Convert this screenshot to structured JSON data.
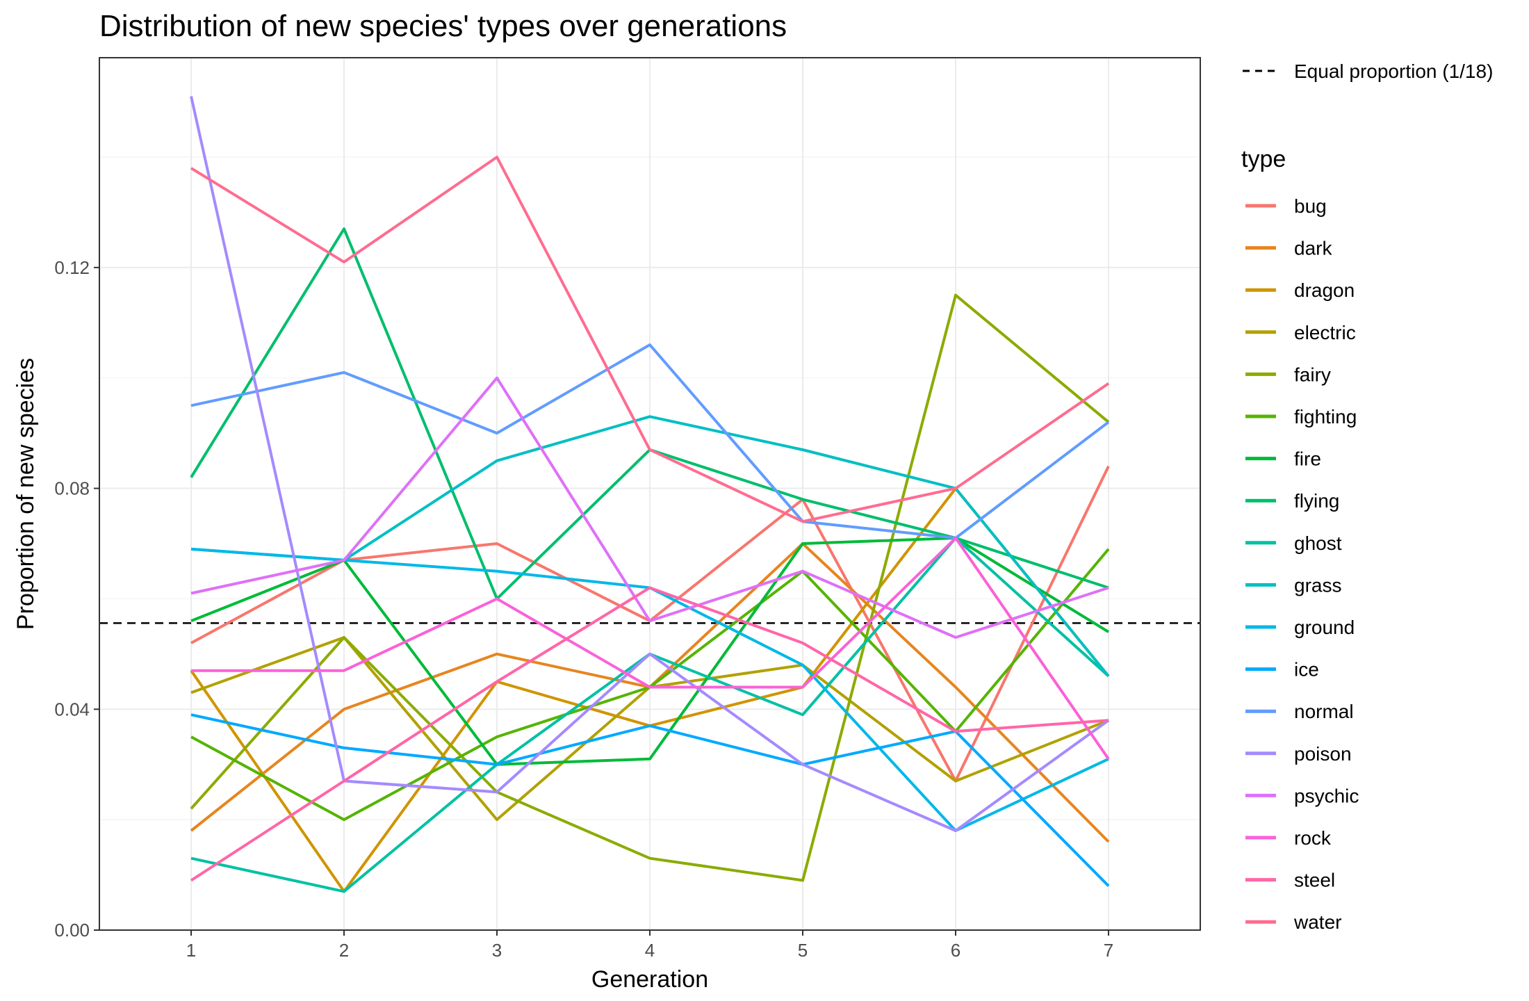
{
  "chart_data": {
    "type": "line",
    "title": "Distribution of new species' types over generations",
    "xlabel": "Generation",
    "ylabel": "Proportion of new species",
    "x": [
      1,
      2,
      3,
      4,
      5,
      6,
      7
    ],
    "xlim": [
      0.4,
      7.6
    ],
    "ylim": [
      0,
      0.158
    ],
    "y_ticks": [
      0.0,
      0.04,
      0.08,
      0.12
    ],
    "y_tick_labels": [
      "0.00",
      "0.04",
      "0.08",
      "0.12"
    ],
    "grid": true,
    "legend_position": "right",
    "legend_title": "type",
    "reference_line": {
      "label": "Equal proportion (1/18)",
      "value": 0.0556,
      "style": "dashed",
      "color": "#000000"
    },
    "series": [
      {
        "name": "bug",
        "color": "#F8766D",
        "values": [
          0.052,
          0.067,
          0.07,
          0.056,
          0.078,
          0.027,
          0.084
        ]
      },
      {
        "name": "dark",
        "color": "#E7851E",
        "values": [
          0.018,
          0.04,
          0.05,
          0.044,
          0.07,
          0.044,
          0.016
        ]
      },
      {
        "name": "dragon",
        "color": "#D09400",
        "values": [
          0.047,
          0.007,
          0.045,
          0.037,
          0.044,
          0.08,
          0.046
        ]
      },
      {
        "name": "electric",
        "color": "#B2A100",
        "values": [
          0.043,
          0.053,
          0.02,
          0.044,
          0.048,
          0.027,
          0.038
        ]
      },
      {
        "name": "fairy",
        "color": "#8BAB00",
        "values": [
          0.022,
          0.053,
          0.025,
          0.013,
          0.009,
          0.115,
          0.092
        ]
      },
      {
        "name": "fighting",
        "color": "#55B400",
        "values": [
          0.035,
          0.02,
          0.035,
          0.044,
          0.065,
          0.036,
          0.069
        ]
      },
      {
        "name": "fire",
        "color": "#00BA38",
        "values": [
          0.056,
          0.067,
          0.03,
          0.031,
          0.07,
          0.071,
          0.054
        ]
      },
      {
        "name": "flying",
        "color": "#00BE6C",
        "values": [
          0.082,
          0.127,
          0.06,
          0.087,
          0.078,
          0.071,
          0.062
        ]
      },
      {
        "name": "ghost",
        "color": "#00C1A3",
        "values": [
          0.013,
          0.007,
          0.03,
          0.05,
          0.039,
          0.071,
          0.046
        ]
      },
      {
        "name": "grass",
        "color": "#00BFC4",
        "values": [
          0.069,
          0.067,
          0.085,
          0.093,
          0.087,
          0.08,
          0.046
        ]
      },
      {
        "name": "ground",
        "color": "#00B8E7",
        "values": [
          0.069,
          0.067,
          0.065,
          0.062,
          0.048,
          0.018,
          0.031
        ]
      },
      {
        "name": "ice",
        "color": "#00A9FF",
        "values": [
          0.039,
          0.033,
          0.03,
          0.037,
          0.03,
          0.036,
          0.008
        ]
      },
      {
        "name": "normal",
        "color": "#619CFF",
        "values": [
          0.095,
          0.101,
          0.09,
          0.106,
          0.074,
          0.071,
          0.092
        ]
      },
      {
        "name": "poison",
        "color": "#A58AFF",
        "values": [
          0.151,
          0.027,
          0.025,
          0.05,
          0.03,
          0.018,
          0.038
        ]
      },
      {
        "name": "psychic",
        "color": "#DF70F8",
        "values": [
          0.061,
          0.067,
          0.1,
          0.056,
          0.065,
          0.053,
          0.062
        ]
      },
      {
        "name": "rock",
        "color": "#FB61D7",
        "values": [
          0.047,
          0.047,
          0.06,
          0.044,
          0.044,
          0.071,
          0.031
        ]
      },
      {
        "name": "steel",
        "color": "#FF66A8",
        "values": [
          0.009,
          0.027,
          0.045,
          0.062,
          0.052,
          0.036,
          0.038
        ]
      },
      {
        "name": "water",
        "color": "#FF6C91",
        "values": [
          0.138,
          0.121,
          0.14,
          0.087,
          0.074,
          0.08,
          0.099
        ]
      }
    ]
  }
}
